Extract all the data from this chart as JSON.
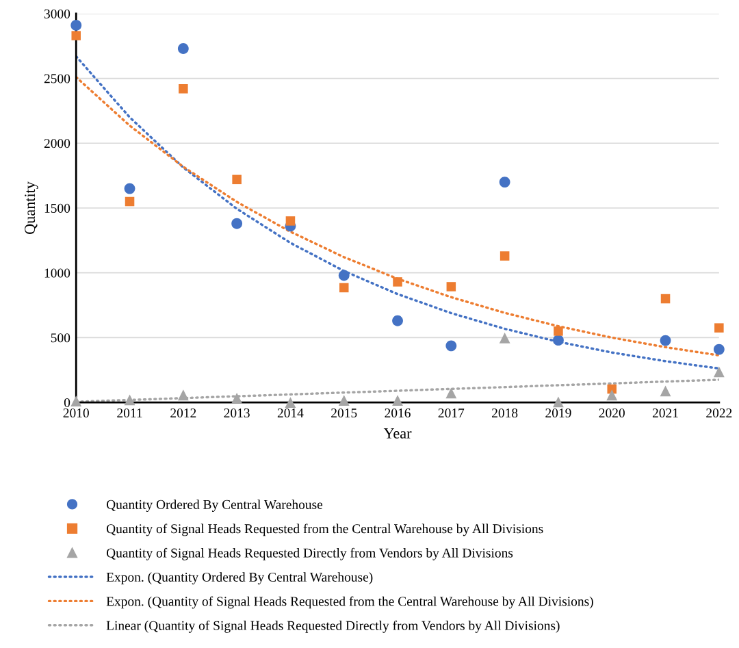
{
  "chart_data": {
    "type": "scatter",
    "xlabel": "Year",
    "ylabel": "Quantity",
    "x": [
      2010,
      2011,
      2012,
      2013,
      2014,
      2015,
      2016,
      2017,
      2018,
      2019,
      2020,
      2021,
      2022
    ],
    "xlim": [
      2010,
      2022
    ],
    "xticks": [
      2010,
      2011,
      2012,
      2013,
      2014,
      2015,
      2016,
      2017,
      2018,
      2019,
      2020,
      2021,
      2022
    ],
    "ylim": [
      0,
      3000
    ],
    "yticks": [
      0,
      500,
      1000,
      1500,
      2000,
      2500,
      3000
    ],
    "grid": "y",
    "legend": "bottom",
    "series": [
      {
        "name": "Quantity Ordered By Central Warehouse",
        "marker": "circle",
        "color": "#4472c4",
        "values": [
          2910,
          1650,
          2730,
          1380,
          1360,
          980,
          630,
          437,
          1700,
          480,
          null,
          478,
          409
        ]
      },
      {
        "name": "Quantity of Signal Heads Requested from the Central Warehouse by All Divisions",
        "marker": "square",
        "color": "#ed7d31",
        "values": [
          2830,
          1550,
          2420,
          1720,
          1400,
          885,
          930,
          893,
          1130,
          550,
          103,
          800,
          575
        ]
      },
      {
        "name": "Quantity of Signal Heads Requested Directly from Vendors by All Divisions",
        "marker": "triangle",
        "color": "#a5a5a5",
        "values": [
          10,
          20,
          57,
          33,
          0,
          16,
          16,
          72,
          497,
          4,
          57,
          88,
          236
        ]
      },
      {
        "name": "Expon. (Quantity Ordered By Central Warehouse)",
        "type": "line",
        "line_style": "dotted",
        "color": "#4472c4",
        "values": [
          2670,
          2200,
          1813,
          1494,
          1231,
          1014,
          836,
          689,
          568,
          468,
          385,
          318,
          262
        ]
      },
      {
        "name": "Expon. (Quantity of Signal Heads Requested from the Central Warehouse by All Divisions)",
        "type": "line",
        "line_style": "dotted",
        "color": "#ed7d31",
        "values": [
          2510,
          2136,
          1818,
          1547,
          1317,
          1121,
          954,
          812,
          691,
          588,
          500,
          426,
          363
        ]
      },
      {
        "name": "Linear (Quantity of Signal Heads Requested Directly from Vendors by All Divisions)",
        "type": "line",
        "line_style": "dotted",
        "color": "#a5a5a5",
        "x": [
          2010,
          2022
        ],
        "values": [
          5,
          175
        ]
      }
    ]
  }
}
